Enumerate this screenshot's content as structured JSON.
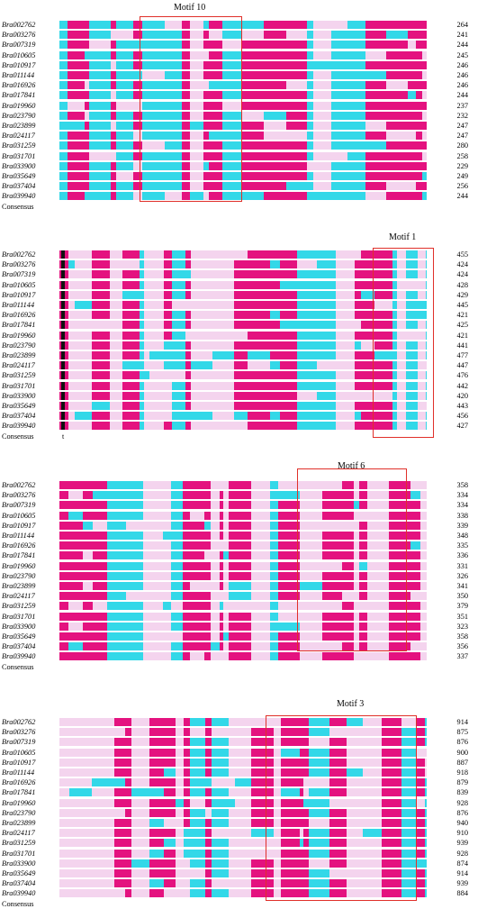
{
  "panels": [
    {
      "motif": "Motif 10",
      "rows": [
        {
          "name": "Bra002762",
          "num": "264"
        },
        {
          "name": "Bra003276",
          "num": "241"
        },
        {
          "name": "Bra007319",
          "num": "244"
        },
        {
          "name": "Bra010605",
          "num": "245"
        },
        {
          "name": "Bra010917",
          "num": "246"
        },
        {
          "name": "Bra011144",
          "num": "246"
        },
        {
          "name": "Bra016926",
          "num": "246"
        },
        {
          "name": "Bra017841",
          "num": "244"
        },
        {
          "name": "Bra019960",
          "num": "237"
        },
        {
          "name": "Bra023790",
          "num": "232"
        },
        {
          "name": "Bra023899",
          "num": "247"
        },
        {
          "name": "Bra024117",
          "num": "247"
        },
        {
          "name": "Bra031259",
          "num": "280"
        },
        {
          "name": "Bra031701",
          "num": "258"
        },
        {
          "name": "Bra033900",
          "num": "229"
        },
        {
          "name": "Bra035649",
          "num": "249"
        },
        {
          "name": "Bra037404",
          "num": "256"
        },
        {
          "name": "Bra039940",
          "num": "244"
        },
        {
          "name": "Consensus",
          "num": ""
        }
      ]
    },
    {
      "motif": "Motif 1",
      "rows": [
        {
          "name": "Bra002762",
          "num": "455"
        },
        {
          "name": "Bra003276",
          "num": "424"
        },
        {
          "name": "Bra007319",
          "num": "424"
        },
        {
          "name": "Bra010605",
          "num": "428"
        },
        {
          "name": "Bra010917",
          "num": "429"
        },
        {
          "name": "Bra011144",
          "num": "445"
        },
        {
          "name": "Bra016926",
          "num": "421"
        },
        {
          "name": "Bra017841",
          "num": "425"
        },
        {
          "name": "Bra019960",
          "num": "421"
        },
        {
          "name": "Bra023790",
          "num": "441"
        },
        {
          "name": "Bra023899",
          "num": "477"
        },
        {
          "name": "Bra024117",
          "num": "447"
        },
        {
          "name": "Bra031259",
          "num": "476"
        },
        {
          "name": "Bra031701",
          "num": "442"
        },
        {
          "name": "Bra033900",
          "num": "420"
        },
        {
          "name": "Bra035649",
          "num": "443"
        },
        {
          "name": "Bra037404",
          "num": "456"
        },
        {
          "name": "Bra039940",
          "num": "427"
        },
        {
          "name": "Consensus",
          "num": "",
          "mark": "t"
        }
      ]
    },
    {
      "motif": "Motif 6",
      "rows": [
        {
          "name": "Bra002762",
          "num": "358"
        },
        {
          "name": "Bra003276",
          "num": "334"
        },
        {
          "name": "Bra007319",
          "num": "334"
        },
        {
          "name": "Bra010605",
          "num": "338"
        },
        {
          "name": "Bra010917",
          "num": "339"
        },
        {
          "name": "Bra011144",
          "num": "348"
        },
        {
          "name": "Bra016926",
          "num": "335"
        },
        {
          "name": "Bra017841",
          "num": "336"
        },
        {
          "name": "Bra019960",
          "num": "331"
        },
        {
          "name": "Bra023790",
          "num": "326"
        },
        {
          "name": "Bra023899",
          "num": "341"
        },
        {
          "name": "Bra024117",
          "num": "350"
        },
        {
          "name": "Bra031259",
          "num": "379"
        },
        {
          "name": "Bra031701",
          "num": "351"
        },
        {
          "name": "Bra033900",
          "num": "323"
        },
        {
          "name": "Bra035649",
          "num": "358"
        },
        {
          "name": "Bra037404",
          "num": "356"
        },
        {
          "name": "Bra039940",
          "num": "337"
        },
        {
          "name": "Consensus",
          "num": ""
        }
      ]
    },
    {
      "motif": "Motif 3",
      "rows": [
        {
          "name": "Bra002762",
          "num": "914"
        },
        {
          "name": "Bra003276",
          "num": "875"
        },
        {
          "name": "Bra007319",
          "num": "876"
        },
        {
          "name": "Bra010605",
          "num": "900"
        },
        {
          "name": "Bra010917",
          "num": "887"
        },
        {
          "name": "Bra011144",
          "num": "918"
        },
        {
          "name": "Bra016926",
          "num": "879"
        },
        {
          "name": "Bra017841",
          "num": "839"
        },
        {
          "name": "Bra019960",
          "num": "928"
        },
        {
          "name": "Bra023790",
          "num": "876"
        },
        {
          "name": "Bra023899",
          "num": "940"
        },
        {
          "name": "Bra024117",
          "num": "910"
        },
        {
          "name": "Bra031259",
          "num": "939"
        },
        {
          "name": "Bra031701",
          "num": "928"
        },
        {
          "name": "Bra033900",
          "num": "874"
        },
        {
          "name": "Bra035649",
          "num": "914"
        },
        {
          "name": "Bra037404",
          "num": "939"
        },
        {
          "name": "Bra039940",
          "num": "884"
        },
        {
          "name": "Consensus",
          "num": ""
        }
      ]
    }
  ]
}
